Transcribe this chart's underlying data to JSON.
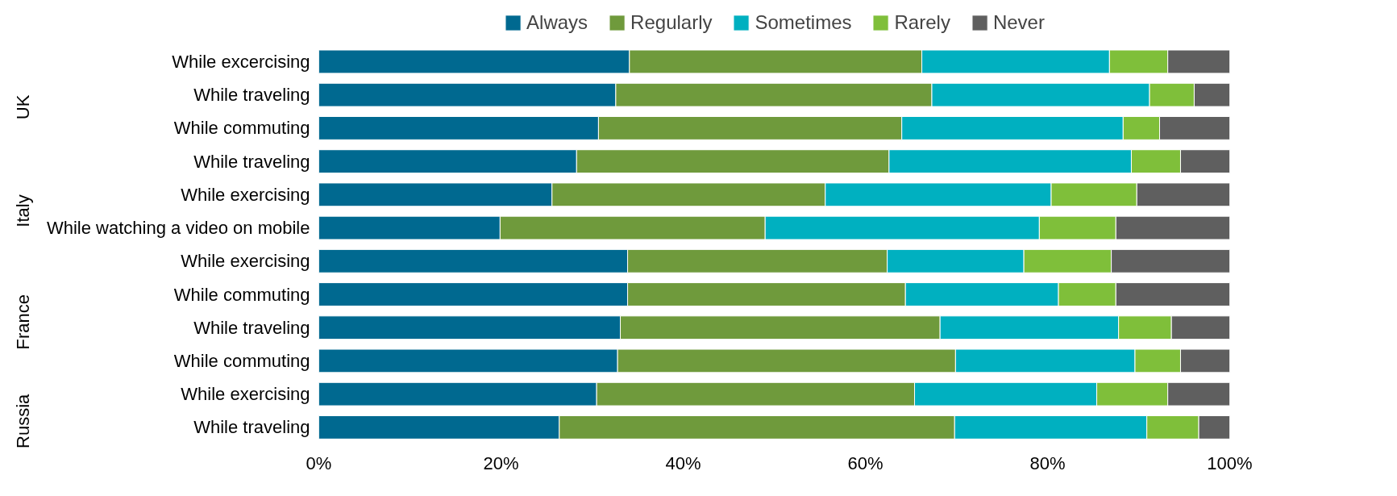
{
  "chart_data": {
    "type": "bar",
    "orientation": "horizontal",
    "stacked": true,
    "categories": [
      "While excercising",
      "While traveling",
      "While commuting",
      "While traveling",
      "While exercising",
      "While watching a video on mobile",
      "While exercising",
      "While commuting",
      "While traveling",
      "While commuting",
      "While exercising",
      "While traveling"
    ],
    "series": [
      {
        "name": "Always",
        "color": "#006990",
        "values": [
          34.1,
          32.6,
          30.7,
          28.3,
          25.6,
          19.9,
          33.9,
          33.9,
          33.1,
          32.8,
          30.5,
          26.4
        ]
      },
      {
        "name": "Regularly",
        "color": "#6f9a3c",
        "values": [
          32.1,
          34.7,
          33.3,
          34.3,
          30.0,
          29.1,
          28.5,
          30.5,
          35.1,
          37.1,
          34.9,
          43.4
        ]
      },
      {
        "name": "Sometimes",
        "color": "#00b0c0",
        "values": [
          20.6,
          23.9,
          24.3,
          26.6,
          24.8,
          30.1,
          15.0,
          16.8,
          19.6,
          19.7,
          20.0,
          21.1
        ]
      },
      {
        "name": "Rarely",
        "color": "#7fbf3a",
        "values": [
          6.4,
          4.9,
          4.0,
          5.4,
          9.4,
          8.4,
          9.6,
          6.3,
          5.8,
          5.0,
          7.8,
          5.7
        ]
      },
      {
        "name": "Never",
        "color": "#5f5f5f",
        "values": [
          6.8,
          3.9,
          7.7,
          5.4,
          10.2,
          12.5,
          13.0,
          12.5,
          6.4,
          5.4,
          6.8,
          3.4
        ]
      }
    ],
    "annotations": [
      "UK",
      "Italy",
      "France",
      "Russia"
    ],
    "xlim": [
      0,
      100
    ],
    "xticks": [
      {
        "value": 0,
        "label": "0%"
      },
      {
        "value": 20,
        "label": "20%"
      },
      {
        "value": 40,
        "label": "40%"
      },
      {
        "value": 60,
        "label": "60%"
      },
      {
        "value": 80,
        "label": "80%"
      },
      {
        "value": 100,
        "label": "100%"
      }
    ],
    "grid": false,
    "legend": "top"
  }
}
